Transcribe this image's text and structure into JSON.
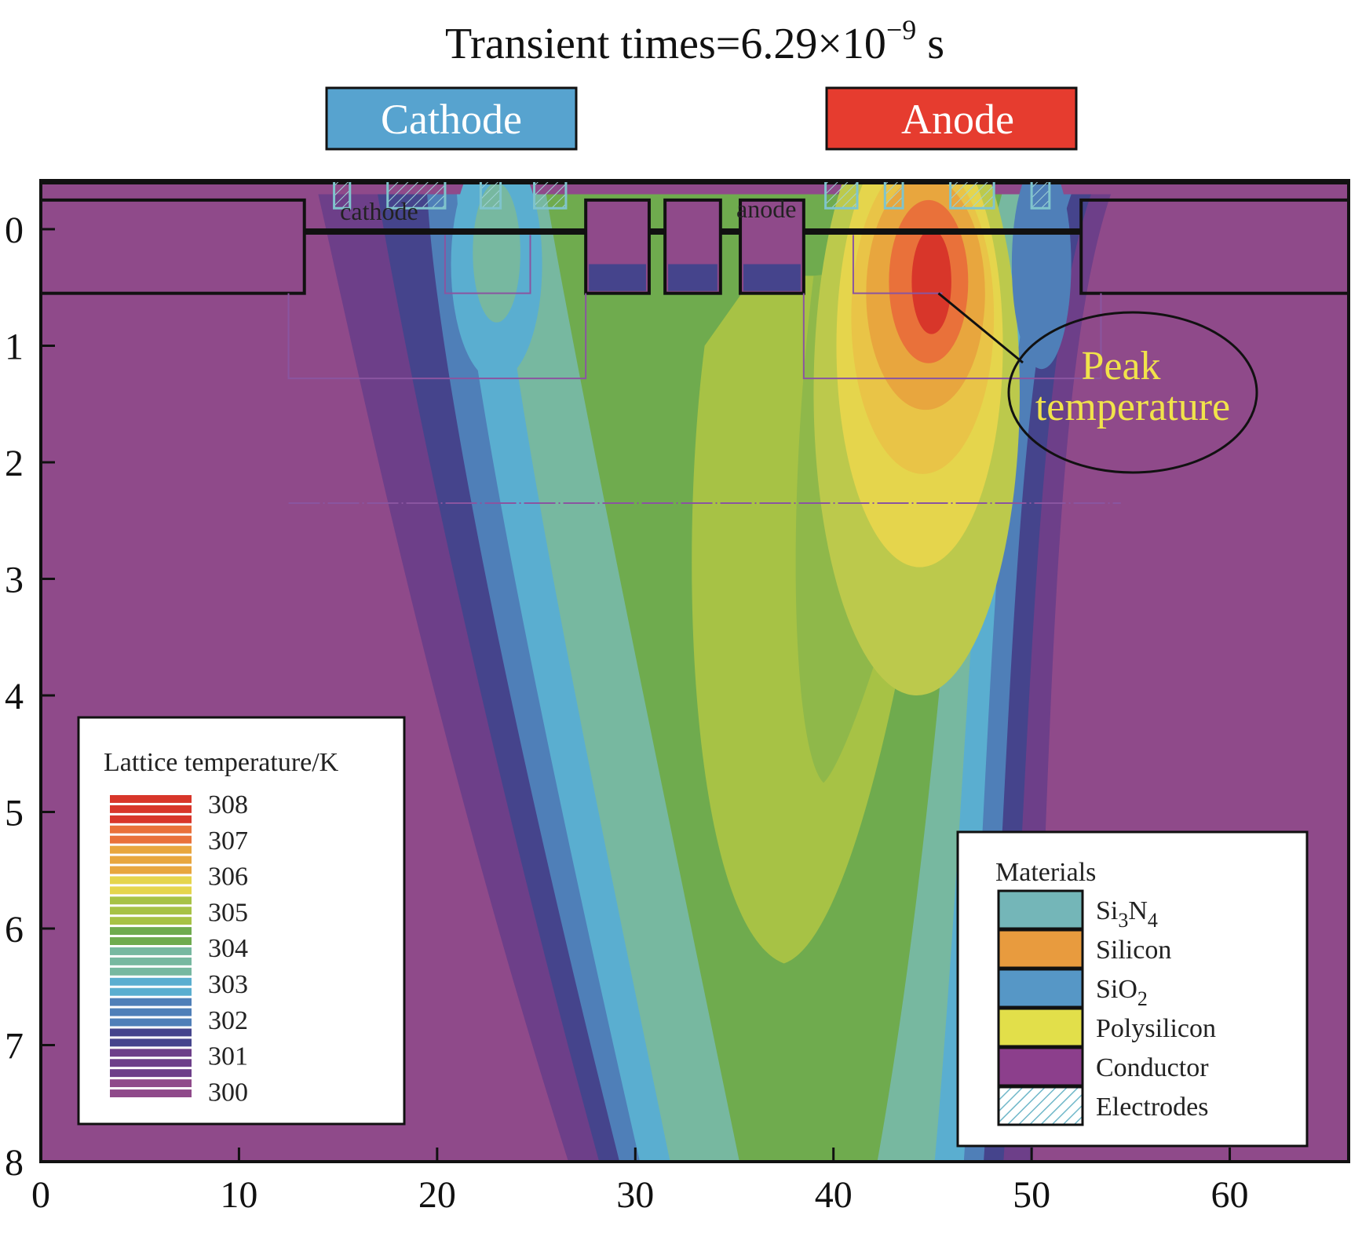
{
  "chart_data": {
    "type": "heatmap",
    "title": {
      "prefix": "Transient times=6.29×10",
      "exponent": "−9",
      "suffix": " s"
    },
    "xlabel": "",
    "ylabel": "",
    "xlim": [
      0,
      66
    ],
    "ylim": [
      0,
      8
    ],
    "y_inverted": true,
    "x_ticks": [
      0,
      10,
      20,
      30,
      40,
      50,
      60
    ],
    "y_ticks": [
      0,
      1,
      2,
      3,
      4,
      5,
      6,
      7,
      8
    ],
    "grid": false,
    "electrode_labels": {
      "cathode_box": "Cathode",
      "anode_box": "Anode",
      "cathode_small": "cathode",
      "anode_small": "anode"
    },
    "electrode_colors": {
      "cathode": "#57a3cf",
      "anode": "#e63c2f"
    },
    "annotation": {
      "line1": "Peak",
      "line2": "temperature",
      "x": 45.3,
      "y": 0.55
    },
    "temperature_field": {
      "background_K": 300,
      "hotspots": [
        {
          "x": 44.8,
          "y": 0.45,
          "peak_K": 308.2
        },
        {
          "x": 38,
          "y": 3.5,
          "peak_K": 305.2
        },
        {
          "x": 23,
          "y": 0.5,
          "peak_K": 303.3
        }
      ]
    },
    "colorbar": {
      "title": "Lattice temperature/K",
      "placement": "bottom-left",
      "ticks": [
        "308",
        "307",
        "306",
        "305",
        "304",
        "303",
        "302",
        "301",
        "300"
      ],
      "colors": [
        "#d8362a",
        "#e9713a",
        "#e8a63e",
        "#e5d54c",
        "#a7c245",
        "#6fab4e",
        "#77b8a0",
        "#5aaed0",
        "#4f7fb8",
        "#45448c",
        "#6d3f89",
        "#8f4a8a"
      ]
    },
    "materials_legend": {
      "title": "Materials",
      "placement": "bottom-right",
      "items": [
        {
          "label": "Si",
          "sub1": "3",
          "mid": "N",
          "sub2": "4",
          "color": "#74b6b8"
        },
        {
          "label": "Silicon",
          "color": "#e89b3e"
        },
        {
          "label": "SiO",
          "sub1": "2",
          "color": "#5697c6"
        },
        {
          "label": "Polysilicon",
          "color": "#e2df4a"
        },
        {
          "label": "Conductor",
          "color": "#8c3f8c"
        },
        {
          "label": "Electrodes",
          "color": "hatch"
        }
      ]
    }
  }
}
